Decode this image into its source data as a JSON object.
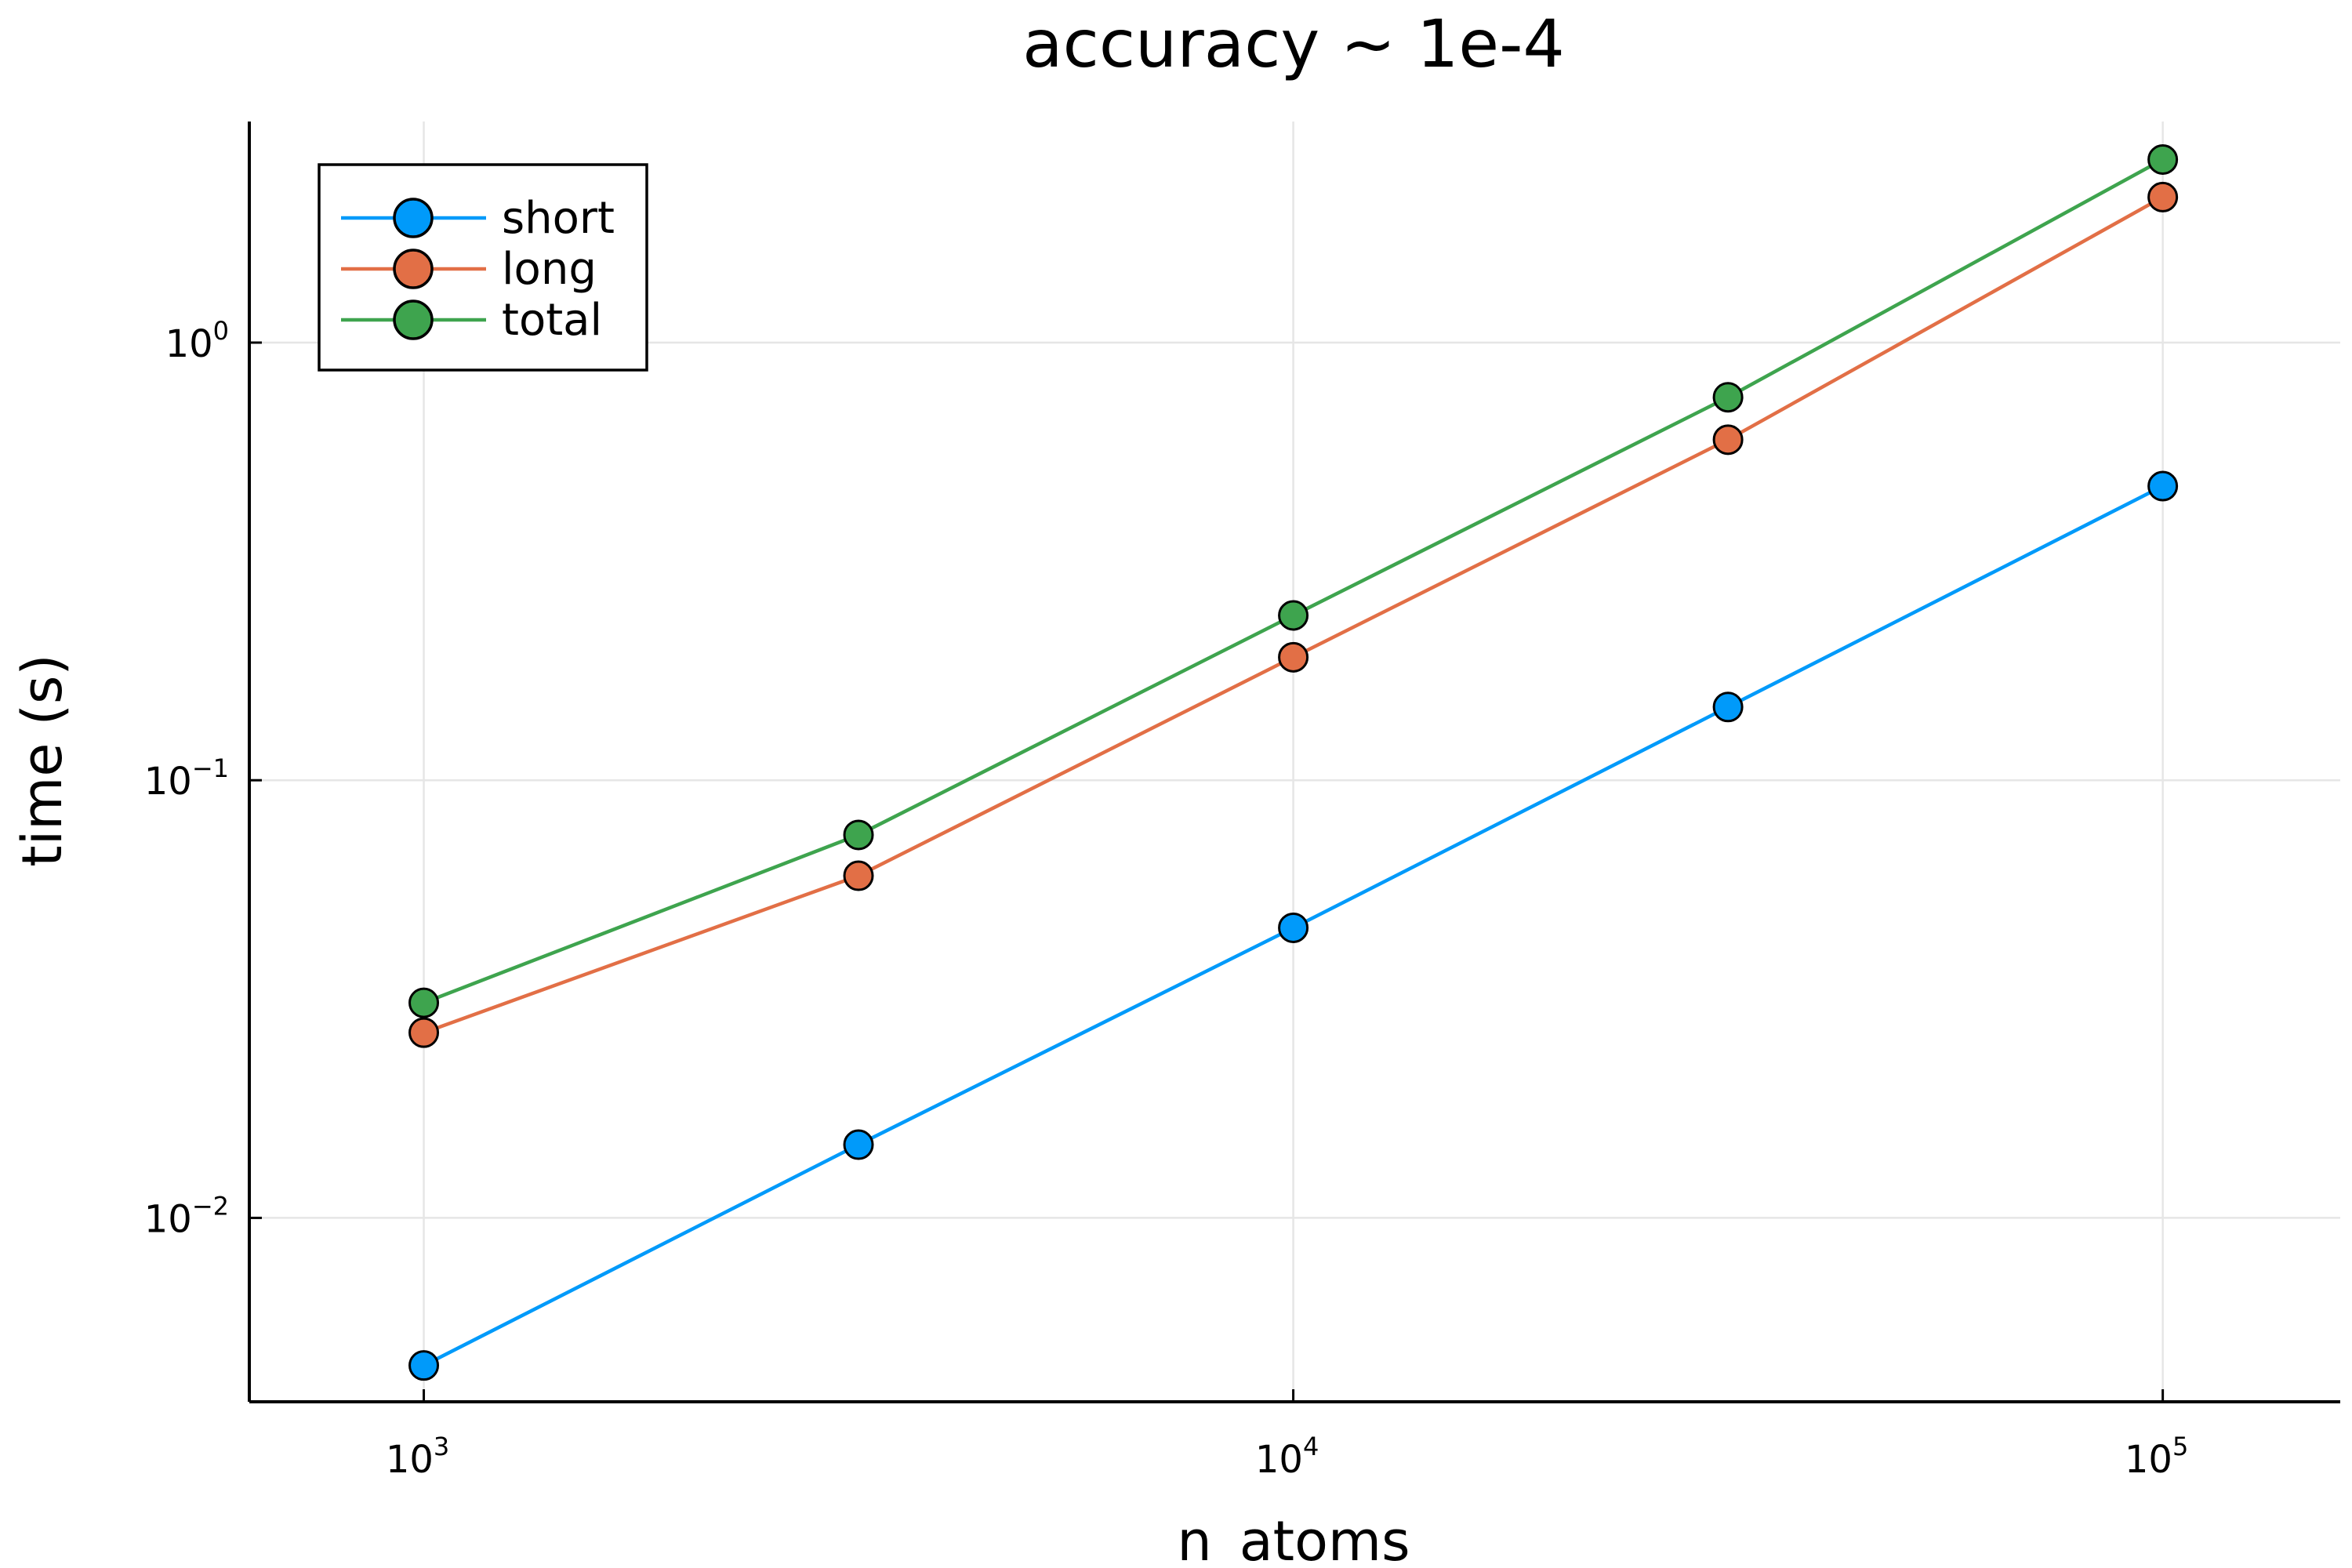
{
  "chart_data": {
    "type": "line",
    "title": "accuracy ~ 1e-4",
    "xlabel": "n_atoms",
    "ylabel": "time (s)",
    "xscale": "log",
    "yscale": "log",
    "xlim": [
      630,
      160000
    ],
    "ylim": [
      0.0038,
      3.2
    ],
    "grid": true,
    "legend_position": "top-left",
    "x_ticks": [
      {
        "value": 1000,
        "base": "10",
        "exp": "3"
      },
      {
        "value": 10000,
        "base": "10",
        "exp": "4"
      },
      {
        "value": 100000,
        "base": "10",
        "exp": "5"
      }
    ],
    "y_ticks": [
      {
        "value": 0.01,
        "base": "10",
        "exp": "−2"
      },
      {
        "value": 0.1,
        "base": "10",
        "exp": "−1"
      },
      {
        "value": 1,
        "base": "10",
        "exp": "0"
      }
    ],
    "x": [
      1000,
      3162,
      10000,
      31623,
      100000
    ],
    "series": [
      {
        "name": "short",
        "color": "#009AFA",
        "values": [
          0.0046,
          0.0147,
          0.046,
          0.147,
          0.47
        ]
      },
      {
        "name": "long",
        "color": "#E26F46",
        "values": [
          0.0265,
          0.0605,
          0.191,
          0.6,
          2.15
        ]
      },
      {
        "name": "total",
        "color": "#3EA44E",
        "values": [
          0.031,
          0.075,
          0.238,
          0.75,
          2.62
        ]
      }
    ]
  }
}
